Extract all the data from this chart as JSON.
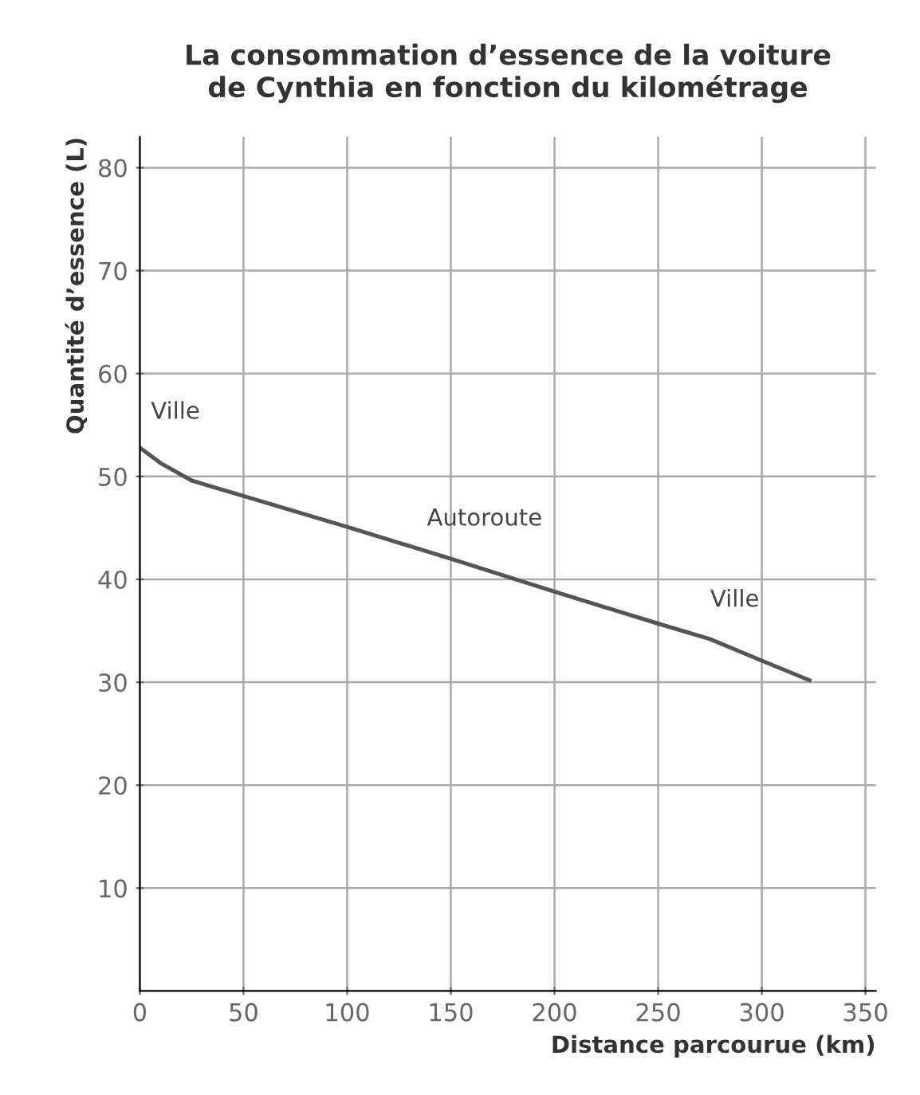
{
  "chart_data": {
    "type": "line",
    "title": "La consommation d’essence de la voiture\nde Cynthia en fonction du kilométrage",
    "xlabel": "Distance parcourue (km)",
    "ylabel": "Quantité d’essence (L)",
    "x": [
      0,
      10,
      25,
      50,
      100,
      150,
      200,
      250,
      275,
      300,
      323
    ],
    "series": [
      {
        "color": "#555555",
        "values": [
          52.8,
          51.3,
          49.6,
          48.1,
          45.1,
          42,
          38.8,
          35.7,
          34.2,
          32.1,
          30.2
        ]
      }
    ],
    "xlim": [
      0,
      355
    ],
    "ylim": [
      0,
      83
    ],
    "xticks": [
      0,
      50,
      100,
      150,
      200,
      250,
      300,
      350
    ],
    "yticks": [
      10,
      20,
      30,
      40,
      50,
      60,
      70,
      80
    ],
    "grid": true,
    "marker": "none",
    "line_style": "solid",
    "annotations": [
      "Ville",
      "Autoroute",
      "Ville"
    ]
  }
}
